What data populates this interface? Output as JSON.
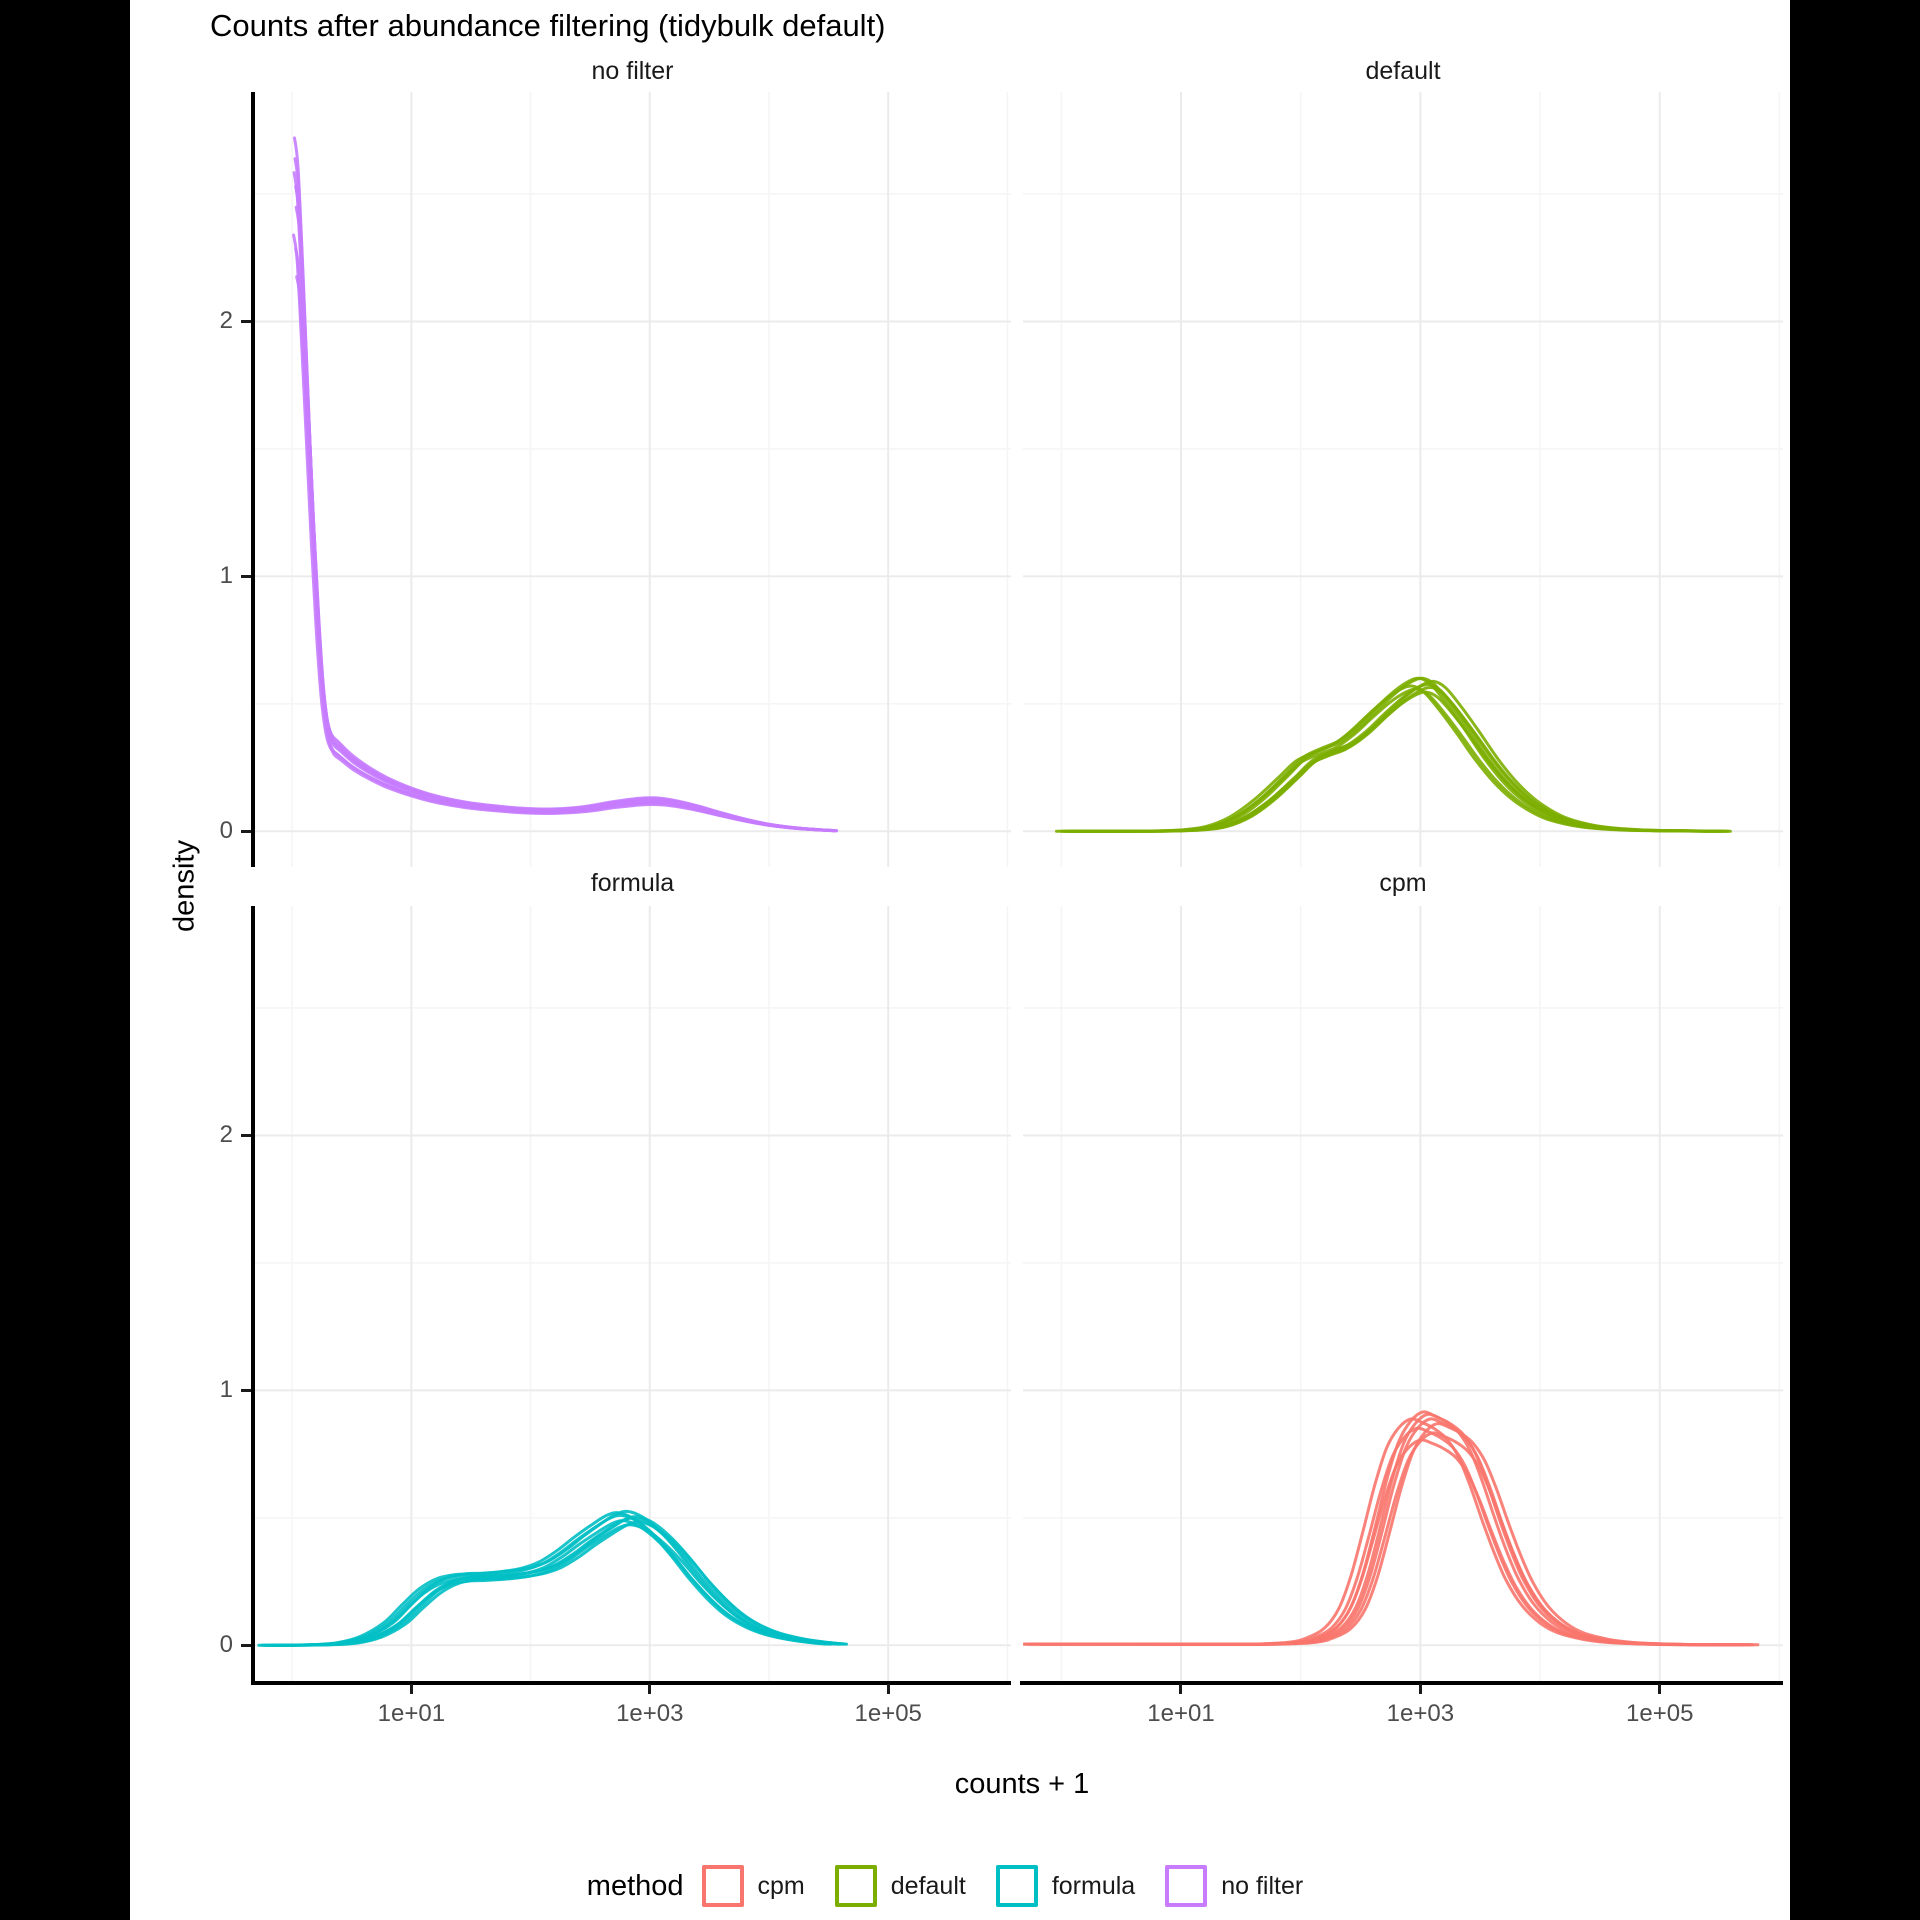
{
  "chart_data": {
    "type": "line",
    "subtype": "density",
    "title": "Counts after abundance filtering (tidybulk default)",
    "xlabel": "counts + 1",
    "ylabel": "density",
    "x_scale": {
      "type": "log10",
      "tick_labels": [
        "1e+01",
        "1e+03",
        "1e+05"
      ],
      "tick_values_log10": [
        1,
        3,
        5
      ],
      "minor_values_log10": [
        0,
        2,
        4,
        6
      ],
      "range_log10": [
        -0.32,
        6.03
      ]
    },
    "y_scale": {
      "tick_labels": [
        "0",
        "1",
        "2"
      ],
      "tick_values": [
        0,
        1,
        2
      ],
      "minor_values": [
        0.5,
        1.5,
        2.5
      ],
      "range": [
        -0.14,
        2.9
      ]
    },
    "facets": [
      {
        "label": "no filter",
        "color": "#C77CFF",
        "grid_pos": "top-left",
        "base_curve": [
          [
            0.02,
            2.72
          ],
          [
            0.05,
            2.6
          ],
          [
            0.09,
            2.2
          ],
          [
            0.13,
            1.75
          ],
          [
            0.17,
            1.3
          ],
          [
            0.21,
            0.92
          ],
          [
            0.25,
            0.62
          ],
          [
            0.29,
            0.45
          ],
          [
            0.33,
            0.38
          ],
          [
            0.39,
            0.35
          ],
          [
            0.5,
            0.3
          ],
          [
            0.65,
            0.25
          ],
          [
            0.8,
            0.21
          ],
          [
            1.0,
            0.17
          ],
          [
            1.2,
            0.14
          ],
          [
            1.45,
            0.115
          ],
          [
            1.7,
            0.1
          ],
          [
            1.95,
            0.09
          ],
          [
            2.2,
            0.088
          ],
          [
            2.45,
            0.097
          ],
          [
            2.7,
            0.117
          ],
          [
            2.9,
            0.129
          ],
          [
            3.05,
            0.131
          ],
          [
            3.2,
            0.122
          ],
          [
            3.4,
            0.1
          ],
          [
            3.6,
            0.073
          ],
          [
            3.8,
            0.048
          ],
          [
            4.0,
            0.028
          ],
          [
            4.2,
            0.015
          ],
          [
            4.4,
            0.007
          ],
          [
            4.55,
            0.003
          ]
        ],
        "replicates": [
          [
            0,
            1.0
          ],
          [
            0.01,
            0.93
          ],
          [
            -0.008,
            0.86
          ],
          [
            0.018,
            0.8
          ],
          [
            0.004,
            0.97
          ],
          [
            0.014,
            0.9
          ],
          [
            -0.004,
            0.95
          ],
          [
            0.01,
            0.84
          ]
        ]
      },
      {
        "label": "default",
        "color": "#7CAE00",
        "grid_pos": "top-right",
        "base_curve": [
          [
            0.05,
            0.0
          ],
          [
            0.8,
            0.001
          ],
          [
            1.1,
            0.006
          ],
          [
            1.3,
            0.02
          ],
          [
            1.5,
            0.06
          ],
          [
            1.7,
            0.13
          ],
          [
            1.9,
            0.22
          ],
          [
            2.05,
            0.29
          ],
          [
            2.2,
            0.325
          ],
          [
            2.35,
            0.355
          ],
          [
            2.5,
            0.41
          ],
          [
            2.65,
            0.48
          ],
          [
            2.8,
            0.545
          ],
          [
            2.92,
            0.585
          ],
          [
            3.02,
            0.6
          ],
          [
            3.12,
            0.575
          ],
          [
            3.25,
            0.5
          ],
          [
            3.4,
            0.4
          ],
          [
            3.55,
            0.295
          ],
          [
            3.7,
            0.205
          ],
          [
            3.85,
            0.135
          ],
          [
            4.0,
            0.085
          ],
          [
            4.15,
            0.05
          ],
          [
            4.35,
            0.025
          ],
          [
            4.55,
            0.012
          ],
          [
            4.8,
            0.005
          ],
          [
            5.1,
            0.002
          ],
          [
            5.5,
            0.0
          ]
        ],
        "replicates": [
          [
            0,
            1.0
          ],
          [
            0.05,
            0.96
          ],
          [
            -0.05,
            0.93
          ],
          [
            0.09,
            0.98
          ],
          [
            -0.09,
            0.95
          ],
          [
            0.03,
            0.91
          ],
          [
            -0.03,
            1.0
          ],
          [
            0.07,
            0.94
          ]
        ]
      },
      {
        "label": "formula",
        "color": "#00BFC4",
        "grid_pos": "bottom-left",
        "base_curve": [
          [
            -0.2,
            0.0
          ],
          [
            0.2,
            0.002
          ],
          [
            0.45,
            0.01
          ],
          [
            0.65,
            0.035
          ],
          [
            0.85,
            0.09
          ],
          [
            1.0,
            0.16
          ],
          [
            1.15,
            0.225
          ],
          [
            1.3,
            0.265
          ],
          [
            1.45,
            0.28
          ],
          [
            1.6,
            0.283
          ],
          [
            1.8,
            0.29
          ],
          [
            2.0,
            0.305
          ],
          [
            2.15,
            0.33
          ],
          [
            2.3,
            0.375
          ],
          [
            2.45,
            0.43
          ],
          [
            2.6,
            0.48
          ],
          [
            2.72,
            0.515
          ],
          [
            2.82,
            0.525
          ],
          [
            2.95,
            0.5
          ],
          [
            3.1,
            0.44
          ],
          [
            3.25,
            0.36
          ],
          [
            3.4,
            0.27
          ],
          [
            3.55,
            0.19
          ],
          [
            3.7,
            0.125
          ],
          [
            3.85,
            0.08
          ],
          [
            4.0,
            0.05
          ],
          [
            4.2,
            0.026
          ],
          [
            4.4,
            0.012
          ],
          [
            4.55,
            0.005
          ]
        ],
        "replicates": [
          [
            0,
            1.0
          ],
          [
            0.05,
            0.95
          ],
          [
            -0.05,
            0.97
          ],
          [
            0.1,
            0.92
          ],
          [
            -0.08,
            0.99
          ],
          [
            0.03,
            0.9
          ],
          [
            0.08,
            0.96
          ],
          [
            -0.03,
            0.93
          ]
        ]
      },
      {
        "label": "cpm",
        "color": "#F8766D",
        "grid_pos": "bottom-right",
        "base_curve": [
          [
            -0.25,
            0.005
          ],
          [
            0.6,
            0.005
          ],
          [
            1.2,
            0.004
          ],
          [
            1.7,
            0.005
          ],
          [
            2.0,
            0.012
          ],
          [
            2.15,
            0.03
          ],
          [
            2.3,
            0.07
          ],
          [
            2.42,
            0.15
          ],
          [
            2.52,
            0.28
          ],
          [
            2.62,
            0.46
          ],
          [
            2.72,
            0.65
          ],
          [
            2.82,
            0.8
          ],
          [
            2.92,
            0.88
          ],
          [
            3.02,
            0.915
          ],
          [
            3.12,
            0.9
          ],
          [
            3.22,
            0.875
          ],
          [
            3.32,
            0.835
          ],
          [
            3.42,
            0.76
          ],
          [
            3.52,
            0.64
          ],
          [
            3.62,
            0.5
          ],
          [
            3.72,
            0.37
          ],
          [
            3.82,
            0.26
          ],
          [
            3.95,
            0.16
          ],
          [
            4.1,
            0.09
          ],
          [
            4.25,
            0.05
          ],
          [
            4.45,
            0.025
          ],
          [
            4.65,
            0.012
          ],
          [
            4.9,
            0.006
          ],
          [
            5.2,
            0.003
          ],
          [
            5.7,
            0.002
          ]
        ],
        "replicates": [
          [
            0,
            1.0
          ],
          [
            -0.1,
            0.97
          ],
          [
            -0.05,
            0.93
          ],
          [
            0.04,
            0.99
          ],
          [
            0.08,
            0.91
          ],
          [
            0.12,
            0.95
          ],
          [
            -0.02,
            0.88
          ],
          [
            0.06,
            0.97
          ]
        ]
      }
    ],
    "legend": {
      "title": "method",
      "items": [
        {
          "label": "cpm",
          "color": "#F8766D"
        },
        {
          "label": "default",
          "color": "#7CAE00"
        },
        {
          "label": "formula",
          "color": "#00BFC4"
        },
        {
          "label": "no filter",
          "color": "#C77CFF"
        }
      ]
    },
    "style": {
      "grid_major_color": "#EBEBEB",
      "grid_minor_color": "#F5F5F5",
      "axis_line_color": "#000000",
      "axis_text_color": "#4d4d4d",
      "curve_stroke_width": 3
    }
  }
}
